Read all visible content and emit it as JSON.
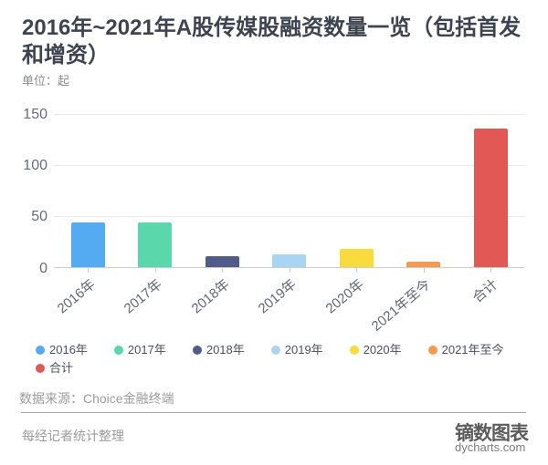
{
  "title": "2016年~2021年A股传媒股融资数量一览（包括首发和增资）",
  "unit_label": "单位：起",
  "chart_data": {
    "type": "bar",
    "categories": [
      "2016年",
      "2017年",
      "2018年",
      "2019年",
      "2020年",
      "2021年至今",
      "合计"
    ],
    "values": [
      44,
      44,
      11,
      13,
      18,
      6,
      136
    ],
    "colors": [
      "#54abf2",
      "#5bd8ab",
      "#515d88",
      "#a8d6f2",
      "#f8dc3e",
      "#f79a4f",
      "#e25855"
    ],
    "title": "2016年~2021年A股传媒股融资数量一览（包括首发和增资）",
    "unit": "单位：起",
    "yticks": [
      0,
      50,
      100,
      150
    ],
    "ylim": [
      0,
      150
    ],
    "grid": true,
    "xlabel_rotation_deg": -40,
    "legend_position": "bottom"
  },
  "legend": {
    "items": [
      {
        "label": "2016年",
        "color": "#54abf2"
      },
      {
        "label": "2017年",
        "color": "#5bd8ab"
      },
      {
        "label": "2018年",
        "color": "#515d88"
      },
      {
        "label": "2019年",
        "color": "#a8d6f2"
      },
      {
        "label": "2020年",
        "color": "#f8dc3e"
      },
      {
        "label": "2021年至今",
        "color": "#f79a4f"
      },
      {
        "label": "合计",
        "color": "#e25855"
      }
    ]
  },
  "footer": {
    "source": "数据来源：Choice金融终端",
    "compiler": "每经记者统计整理"
  },
  "brand": {
    "name": "镝数图表",
    "domain": "dycharts.com"
  }
}
